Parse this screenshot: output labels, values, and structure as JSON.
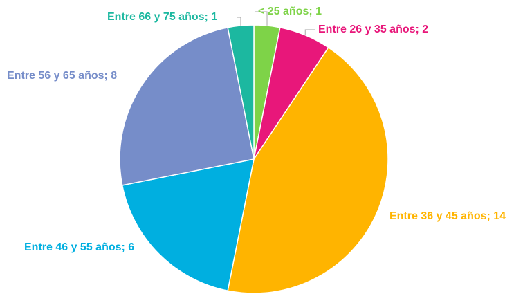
{
  "chart_data": {
    "type": "pie",
    "values": [
      1,
      2,
      14,
      6,
      8,
      1
    ],
    "value_labels": [
      "< 25 años; 1",
      "Entre 26 y 35 años; 2",
      "Entre 36 y 45 años; 14",
      "Entre 46 y 55 años; 6",
      "Entre 56 y 65 años; 8",
      "Entre 66 y 75 años; 1"
    ],
    "colors": [
      "#7ed348",
      "#e8177a",
      "#ffb400",
      "#00afe0",
      "#768dc9",
      "#1cb8a0"
    ]
  }
}
